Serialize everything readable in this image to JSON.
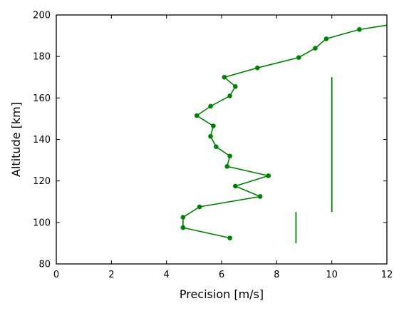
{
  "chart_data": {
    "type": "line",
    "title": "",
    "xlabel": "Precision [m/s]",
    "ylabel": "Altitude [km]",
    "xlim": [
      0,
      12
    ],
    "ylim": [
      80,
      200
    ],
    "xticks": [
      0,
      2,
      4,
      6,
      8,
      10,
      12
    ],
    "yticks": [
      80,
      100,
      120,
      140,
      160,
      180,
      200
    ],
    "grid": false,
    "series": [
      {
        "color": "#008000",
        "marker": "circle",
        "points": [
          {
            "x": 6.3,
            "y": 92.5
          },
          {
            "x": 4.6,
            "y": 97.5
          },
          {
            "x": 4.6,
            "y": 102.5
          },
          {
            "x": 5.2,
            "y": 107.5
          },
          {
            "x": 7.4,
            "y": 112.5
          },
          {
            "x": 6.5,
            "y": 117.5
          },
          {
            "x": 7.7,
            "y": 122.5
          },
          {
            "x": 6.2,
            "y": 127.0
          },
          {
            "x": 6.3,
            "y": 132.0
          },
          {
            "x": 5.8,
            "y": 136.5
          },
          {
            "x": 5.6,
            "y": 141.5
          },
          {
            "x": 5.7,
            "y": 146.5
          },
          {
            "x": 5.1,
            "y": 151.5
          },
          {
            "x": 5.6,
            "y": 156.0
          },
          {
            "x": 6.3,
            "y": 161.0
          },
          {
            "x": 6.5,
            "y": 165.5
          },
          {
            "x": 6.1,
            "y": 170.0
          },
          {
            "x": 7.3,
            "y": 174.5
          },
          {
            "x": 8.8,
            "y": 179.5
          },
          {
            "x": 9.4,
            "y": 184.0
          },
          {
            "x": 9.8,
            "y": 188.5
          },
          {
            "x": 11.0,
            "y": 193.0
          },
          {
            "x": 12.2,
            "y": 195.5
          }
        ]
      }
    ],
    "vertical_lines": [
      {
        "x": 10.0,
        "y_start": 105,
        "y_end": 170,
        "color": "#008000"
      },
      {
        "x": 8.7,
        "y_start": 90,
        "y_end": 105,
        "color": "#008000"
      }
    ]
  }
}
